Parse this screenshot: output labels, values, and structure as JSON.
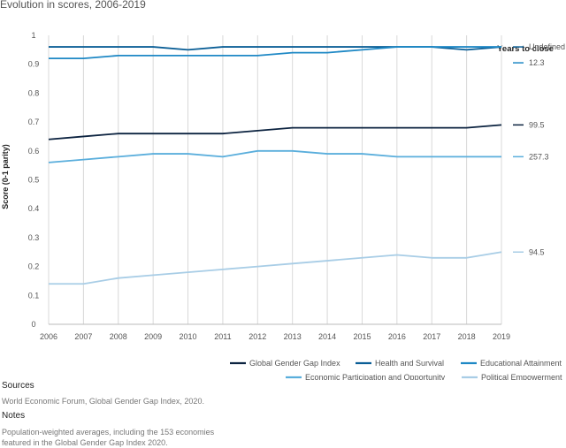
{
  "chart_data": {
    "type": "line",
    "title": "Evolution in scores, 2006-2019",
    "xlabel": "",
    "ylabel": "Score (0-1 parity)",
    "x": [
      2006,
      2007,
      2008,
      2009,
      2010,
      2011,
      2012,
      2013,
      2014,
      2015,
      2016,
      2017,
      2018,
      2019
    ],
    "ylim": [
      0,
      1
    ],
    "yticks": [
      "0",
      "0.1",
      "0.2",
      "0.3",
      "0.4",
      "0.5",
      "0.6",
      "0.7",
      "0.8",
      "0.9",
      "1"
    ],
    "grid": "vertical",
    "legend_position": "bottom-right",
    "right_panel_title": "Years to close",
    "series": [
      {
        "name": "Global Gender Gap Index",
        "color": "#0c2340",
        "years_to_close": "99.5",
        "values": [
          0.64,
          0.65,
          0.66,
          0.66,
          0.66,
          0.66,
          0.67,
          0.68,
          0.68,
          0.68,
          0.68,
          0.68,
          0.68,
          0.69
        ]
      },
      {
        "name": "Health and Survival",
        "color": "#0a5e96",
        "years_to_close": "Undefined",
        "values": [
          0.96,
          0.96,
          0.96,
          0.96,
          0.95,
          0.96,
          0.96,
          0.96,
          0.96,
          0.96,
          0.96,
          0.96,
          0.95,
          0.96
        ]
      },
      {
        "name": "Educational Attainment",
        "color": "#1e88c5",
        "years_to_close": "12.3",
        "values": [
          0.92,
          0.92,
          0.93,
          0.93,
          0.93,
          0.93,
          0.93,
          0.94,
          0.94,
          0.95,
          0.96,
          0.96,
          0.96,
          0.96
        ]
      },
      {
        "name": "Economic Participation and Opportunity",
        "color": "#5aaedc",
        "years_to_close": "257.3",
        "values": [
          0.56,
          0.57,
          0.58,
          0.59,
          0.59,
          0.58,
          0.6,
          0.6,
          0.59,
          0.59,
          0.58,
          0.58,
          0.58,
          0.58
        ]
      },
      {
        "name": "Political Empowerment",
        "color": "#a8cde6",
        "years_to_close": "94.5",
        "values": [
          0.14,
          0.14,
          0.16,
          0.17,
          0.18,
          0.19,
          0.2,
          0.21,
          0.22,
          0.23,
          0.24,
          0.23,
          0.23,
          0.25
        ]
      }
    ]
  },
  "notes_section": {
    "sources_heading": "Sources",
    "sources_text": "World Economic Forum, Global Gender Gap Index, 2020.",
    "notes_heading": "Notes",
    "notes_line_1": "Population-weighted averages, including the 153 economies",
    "notes_line_2": "featured in the Global Gender Gap Index 2020."
  }
}
